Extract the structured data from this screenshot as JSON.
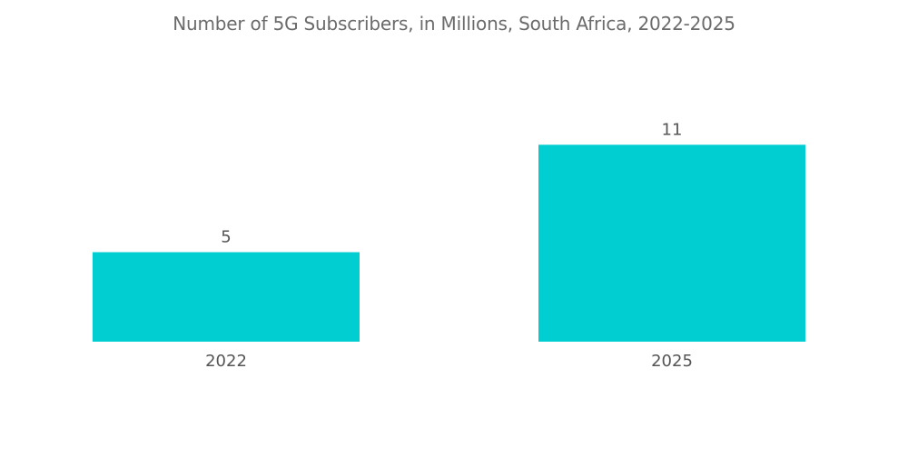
{
  "chart_data": {
    "type": "bar",
    "title": "Number of 5G Subscribers, in Millions, South Africa, 2022-2025",
    "categories": [
      "2022",
      "2025"
    ],
    "values": [
      5,
      11
    ],
    "data_labels": [
      "5",
      "11"
    ],
    "xlabel": "",
    "ylabel": "",
    "grid": false,
    "legend": "none",
    "bar_color": "#00CED1"
  }
}
